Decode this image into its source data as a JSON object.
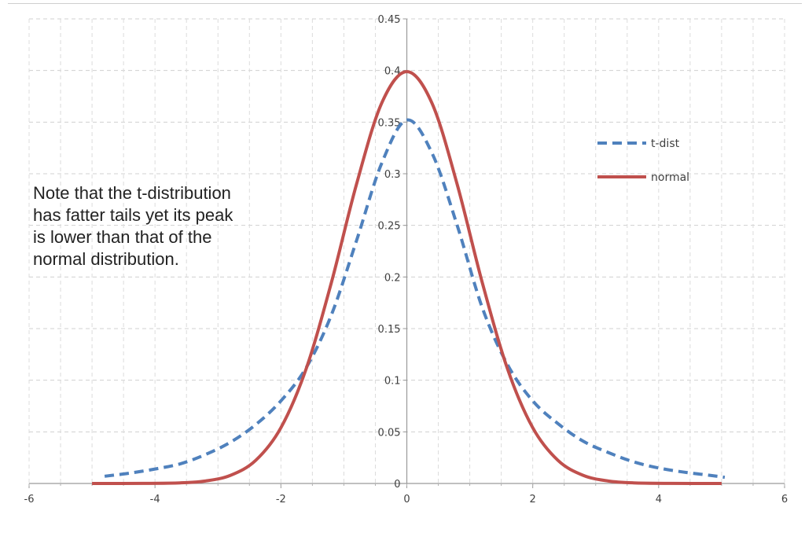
{
  "note_lines": [
    "Note that the t-distribution",
    "has fatter tails yet its peak",
    "is lower than that of the",
    "normal distribution."
  ],
  "chart_data": {
    "type": "line",
    "xlim": [
      -6,
      6
    ],
    "ylim": [
      0,
      0.45
    ],
    "x_ticks": [
      -6,
      -4,
      -2,
      0,
      2,
      4,
      6
    ],
    "y_ticks": [
      0,
      0.05,
      0.1,
      0.15,
      0.2,
      0.25,
      0.3,
      0.35,
      0.4,
      0.45
    ],
    "x_tick_labels": [
      "-6",
      "-4",
      "-2",
      "0",
      "2",
      "4",
      "6"
    ],
    "y_tick_labels": [
      "0",
      "0.05",
      "0.1",
      "0.15",
      "0.2",
      "0.25",
      "0.3",
      "0.35",
      "0.4",
      "0.45"
    ],
    "grid": "dashed",
    "legend_position": "right",
    "series": [
      {
        "name": "t-dist",
        "style": "dashed",
        "color": "#4f81bd",
        "x": [
          -4.8,
          -4.4,
          -4,
          -3.6,
          -3.2,
          -2.8,
          -2.4,
          -2,
          -1.6,
          -1.2,
          -0.8,
          -0.4,
          0,
          0.4,
          0.8,
          1.2,
          1.6,
          2,
          2.4,
          2.8,
          3.2,
          3.6,
          4,
          4.4,
          4.8,
          5.05
        ],
        "y": [
          0.007,
          0.01,
          0.014,
          0.019,
          0.028,
          0.04,
          0.057,
          0.08,
          0.112,
          0.163,
          0.235,
          0.31,
          0.352,
          0.32,
          0.25,
          0.17,
          0.115,
          0.08,
          0.058,
          0.041,
          0.03,
          0.021,
          0.015,
          0.011,
          0.008,
          0.006
        ]
      },
      {
        "name": "normal",
        "style": "solid",
        "color": "#c0504d",
        "x": [
          -5,
          -4.2,
          -3.6,
          -3.2,
          -2.8,
          -2.4,
          -2,
          -1.6,
          -1.2,
          -0.8,
          -0.4,
          0,
          0.4,
          0.8,
          1.2,
          1.6,
          2,
          2.4,
          2.8,
          3.2,
          3.6,
          4.2,
          5
        ],
        "y": [
          0.0,
          0.0001,
          0.0006,
          0.0024,
          0.0079,
          0.0224,
          0.054,
          0.1109,
          0.1942,
          0.2897,
          0.3683,
          0.3989,
          0.3683,
          0.2897,
          0.1942,
          0.1109,
          0.054,
          0.0224,
          0.0079,
          0.0024,
          0.0006,
          0.0001,
          0.0
        ]
      }
    ]
  }
}
